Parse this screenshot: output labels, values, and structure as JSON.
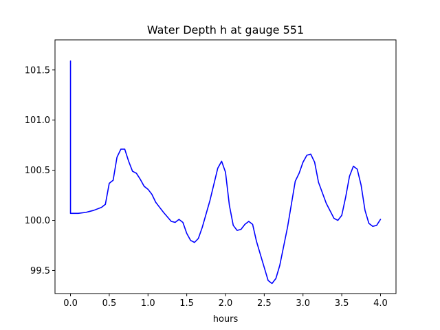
{
  "chart_data": {
    "type": "line",
    "title": "Water Depth h at gauge 551",
    "xlabel": "hours",
    "ylabel": "",
    "xlim": [
      -0.2,
      4.2
    ],
    "ylim": [
      99.27,
      101.8
    ],
    "xticks": [
      0.0,
      0.5,
      1.0,
      1.5,
      2.0,
      2.5,
      3.0,
      3.5,
      4.0
    ],
    "xtick_labels": [
      "0.0",
      "0.5",
      "1.0",
      "1.5",
      "2.0",
      "2.5",
      "3.0",
      "3.5",
      "4.0"
    ],
    "yticks": [
      99.5,
      100.0,
      100.5,
      101.0,
      101.5
    ],
    "ytick_labels": [
      "99.5",
      "100.0",
      "100.5",
      "101.0",
      "101.5"
    ],
    "grid": false,
    "series": [
      {
        "color": "#0000ff",
        "x": [
          0.0,
          0.0,
          0.0,
          0.1,
          0.2,
          0.3,
          0.4,
          0.45,
          0.5,
          0.55,
          0.6,
          0.65,
          0.7,
          0.75,
          0.8,
          0.85,
          0.9,
          0.95,
          1.0,
          1.05,
          1.1,
          1.15,
          1.2,
          1.3,
          1.35,
          1.4,
          1.45,
          1.5,
          1.55,
          1.6,
          1.65,
          1.7,
          1.8,
          1.9,
          1.95,
          2.0,
          2.05,
          2.1,
          2.15,
          2.2,
          2.25,
          2.3,
          2.35,
          2.4,
          2.5,
          2.55,
          2.6,
          2.65,
          2.7,
          2.8,
          2.9,
          2.95,
          3.0,
          3.05,
          3.1,
          3.15,
          3.2,
          3.3,
          3.4,
          3.45,
          3.5,
          3.55,
          3.6,
          3.65,
          3.7,
          3.75,
          3.8,
          3.85,
          3.9,
          3.95,
          4.0
        ],
        "y": [
          101.59,
          100.07,
          100.07,
          100.07,
          100.08,
          100.1,
          100.13,
          100.16,
          100.37,
          100.4,
          100.63,
          100.71,
          100.71,
          100.59,
          100.49,
          100.47,
          100.41,
          100.34,
          100.31,
          100.26,
          100.18,
          100.13,
          100.08,
          99.99,
          99.98,
          100.01,
          99.98,
          99.87,
          99.8,
          99.78,
          99.82,
          99.93,
          100.2,
          100.52,
          100.59,
          100.48,
          100.15,
          99.95,
          99.9,
          99.91,
          99.96,
          99.99,
          99.96,
          99.79,
          99.53,
          99.4,
          99.37,
          99.42,
          99.55,
          99.93,
          100.39,
          100.47,
          100.58,
          100.65,
          100.66,
          100.58,
          100.38,
          100.17,
          100.02,
          100.0,
          100.05,
          100.23,
          100.44,
          100.54,
          100.51,
          100.35,
          100.1,
          99.97,
          99.94,
          99.95,
          100.01
        ]
      }
    ]
  }
}
